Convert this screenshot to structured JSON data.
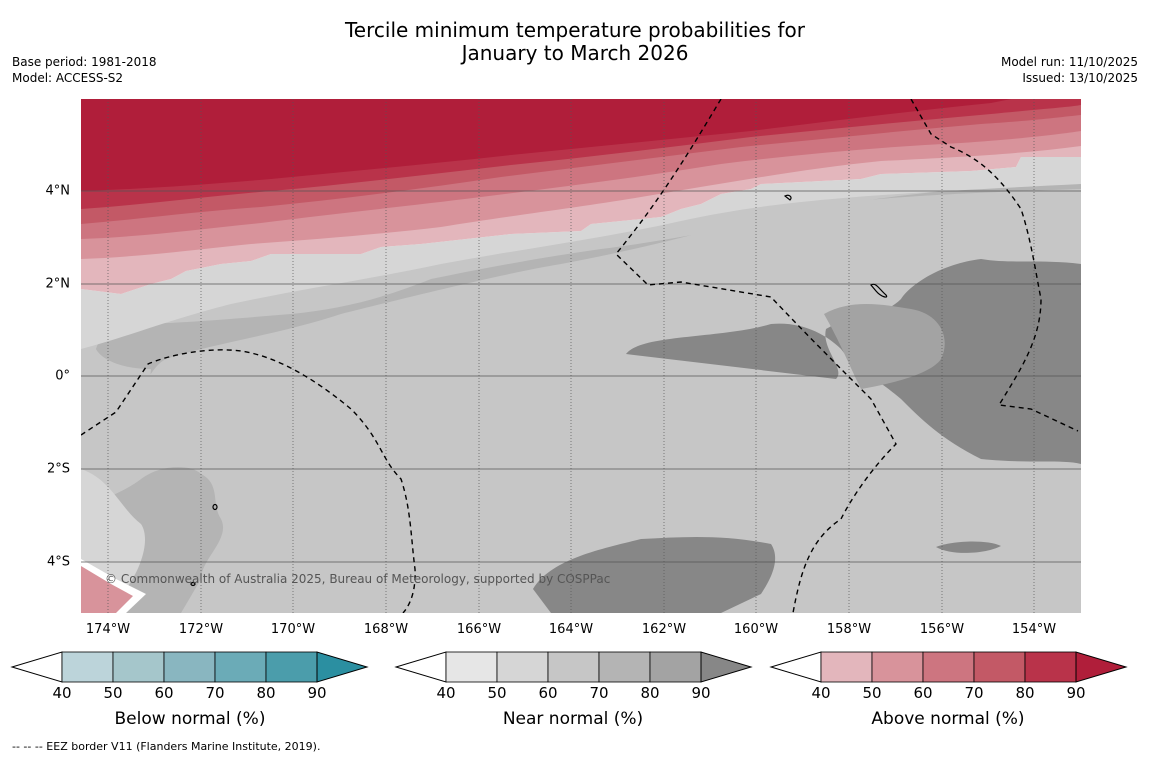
{
  "title": {
    "line1": "Tercile minimum temperature probabilities for",
    "line2": "January to March 2026"
  },
  "meta": {
    "base_period": "Base period: 1981-2018",
    "model": "Model: ACCESS-S2",
    "model_run": "Model run: 11/10/2025",
    "issued": "Issued: 13/10/2025"
  },
  "map": {
    "lat_labels": [
      "4°N",
      "2°N",
      "0°",
      "2°S",
      "4°S"
    ],
    "lon_labels": [
      "174°W",
      "172°W",
      "170°W",
      "168°W",
      "166°W",
      "164°W",
      "162°W",
      "160°W",
      "158°W",
      "156°W",
      "154°W"
    ],
    "copyright": "© Commonwealth of Australia 2025, Bureau of Meteorology, supported by COSPPac",
    "colors": {
      "near": [
        "#e6e6e6",
        "#d6d6d6",
        "#c6c6c6",
        "#b4b4b4",
        "#a3a3a3",
        "#878787"
      ],
      "above": [
        "#e3b6bc",
        "#d8939b",
        "#cd7580",
        "#c35966",
        "#b9334a",
        "#b01e3a"
      ]
    }
  },
  "colorbars": {
    "ticks": [
      "40",
      "50",
      "60",
      "70",
      "80",
      "90"
    ],
    "below": {
      "label": "Below normal (%)",
      "colors": [
        "#bcd4da",
        "#a5c6cb",
        "#89b6c0",
        "#6babb7",
        "#4b9dab",
        "#2b8fa1"
      ]
    },
    "near": {
      "label": "Near normal (%)",
      "colors": [
        "#e6e6e6",
        "#d6d6d6",
        "#c6c6c6",
        "#b4b4b4",
        "#a3a3a3",
        "#878787"
      ]
    },
    "above": {
      "label": "Above normal (%)",
      "colors": [
        "#e3b6bc",
        "#d8939b",
        "#cd7580",
        "#c35966",
        "#b9334a",
        "#b01e3a"
      ]
    }
  },
  "footnote": "--  --  -- EEZ border V11 (Flanders Marine Institute, 2019)."
}
